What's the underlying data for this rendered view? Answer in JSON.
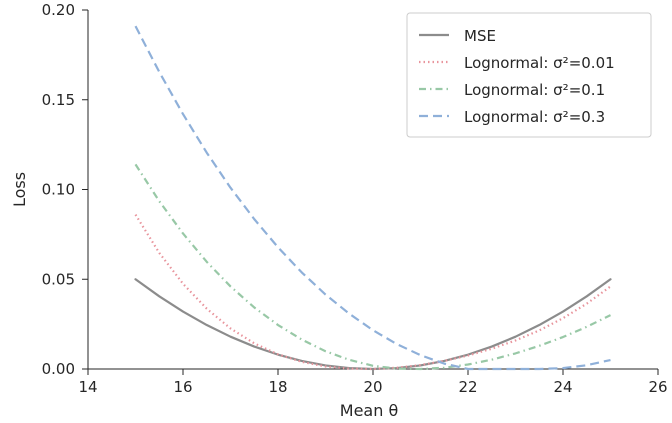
{
  "chart_data": {
    "type": "line",
    "title": "",
    "xlabel": "Mean θ",
    "ylabel": "Loss",
    "xlim": [
      14,
      26
    ],
    "ylim": [
      0,
      0.2
    ],
    "xticks": [
      "14",
      "16",
      "18",
      "20",
      "22",
      "24",
      "26"
    ],
    "yticks": [
      "0.00",
      "0.05",
      "0.10",
      "0.15",
      "0.20"
    ],
    "grid": false,
    "legend_position": "top-right",
    "series": [
      {
        "name": "MSE",
        "color": "#8c8c8c",
        "dash": "solid",
        "x": [
          15,
          15.5,
          16,
          16.5,
          17,
          17.5,
          18,
          18.5,
          19,
          19.5,
          20,
          20.5,
          21,
          21.5,
          22,
          22.5,
          23,
          23.5,
          24,
          24.5,
          25
        ],
        "y": [
          0.05,
          0.0405,
          0.032,
          0.0245,
          0.018,
          0.0125,
          0.008,
          0.0045,
          0.002,
          0.0005,
          0.0,
          0.0005,
          0.002,
          0.0045,
          0.008,
          0.0125,
          0.018,
          0.0245,
          0.032,
          0.0405,
          0.05
        ]
      },
      {
        "name": "Lognormal: σ²=0.01",
        "color": "#e8949c",
        "dash": "dotted",
        "x": [
          15,
          15.5,
          16,
          16.5,
          17,
          17.5,
          18,
          18.5,
          19,
          19.5,
          20,
          20.5,
          21,
          21.5,
          22,
          22.5,
          23,
          23.5,
          24,
          24.5,
          25
        ],
        "y": [
          0.086,
          0.0647,
          0.0475,
          0.0336,
          0.0226,
          0.0143,
          0.0082,
          0.004,
          0.0014,
          0.0002,
          0.0,
          0.0007,
          0.0022,
          0.0045,
          0.0075,
          0.0113,
          0.0159,
          0.0215,
          0.0283,
          0.0364,
          0.046
        ]
      },
      {
        "name": "Lognormal: σ²=0.1",
        "color": "#98c8a6",
        "dash": "dashdot",
        "x": [
          15,
          15.5,
          16,
          16.5,
          17,
          17.5,
          18,
          18.5,
          19,
          19.5,
          20,
          20.5,
          21,
          21.5,
          22,
          22.5,
          23,
          23.5,
          24,
          24.5,
          25
        ],
        "y": [
          0.114,
          0.0935,
          0.0755,
          0.0597,
          0.046,
          0.0343,
          0.0245,
          0.0164,
          0.0099,
          0.0051,
          0.0018,
          0.0002,
          0.0,
          0.0007,
          0.0025,
          0.0052,
          0.0087,
          0.0129,
          0.0178,
          0.0235,
          0.03
        ]
      },
      {
        "name": "Lognormal: σ²=0.3",
        "color": "#8fb0d9",
        "dash": "dashed",
        "x": [
          15,
          15.5,
          16,
          16.5,
          17,
          17.5,
          18,
          18.5,
          19,
          19.5,
          20,
          20.5,
          21,
          21.5,
          22,
          22.5,
          23,
          23.5,
          24,
          24.5,
          25
        ],
        "y": [
          0.191,
          0.1655,
          0.142,
          0.1205,
          0.101,
          0.0835,
          0.0678,
          0.0538,
          0.0415,
          0.0308,
          0.0216,
          0.0139,
          0.0077,
          0.003,
          0.0,
          0.0,
          0.0,
          0.0,
          0.0005,
          0.0021,
          0.005
        ]
      }
    ]
  }
}
